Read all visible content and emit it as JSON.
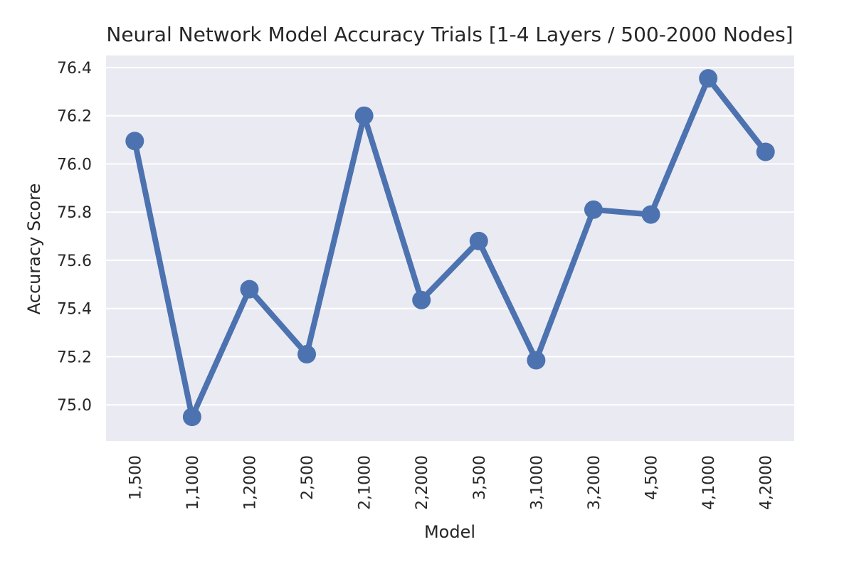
{
  "chart_data": {
    "type": "line",
    "title": "Neural Network Model Accuracy Trials [1-4 Layers / 500-2000 Nodes]",
    "xlabel": "Model",
    "ylabel": "Accuracy Score",
    "categories": [
      "1,500",
      "1,1000",
      "1,2000",
      "2,500",
      "2,1000",
      "2,2000",
      "3,500",
      "3,1000",
      "3,2000",
      "4,500",
      "4,1000",
      "4,2000"
    ],
    "series": [
      {
        "name": "Accuracy Score",
        "values": [
          76.095,
          74.95,
          75.48,
          75.21,
          76.2,
          75.435,
          75.68,
          75.185,
          75.81,
          75.79,
          76.355,
          76.05
        ]
      }
    ],
    "ylim": [
      74.85,
      76.45
    ],
    "yticks": [
      75.0,
      75.2,
      75.4,
      75.6,
      75.8,
      76.0,
      76.2,
      76.4
    ],
    "ytick_labels": [
      "75.0",
      "75.2",
      "75.4",
      "75.6",
      "75.8",
      "76.0",
      "76.2",
      "76.4"
    ],
    "grid": true,
    "colors": {
      "line": "#4c72b0",
      "background": "#eaeaf2",
      "grid": "#ffffff"
    }
  }
}
